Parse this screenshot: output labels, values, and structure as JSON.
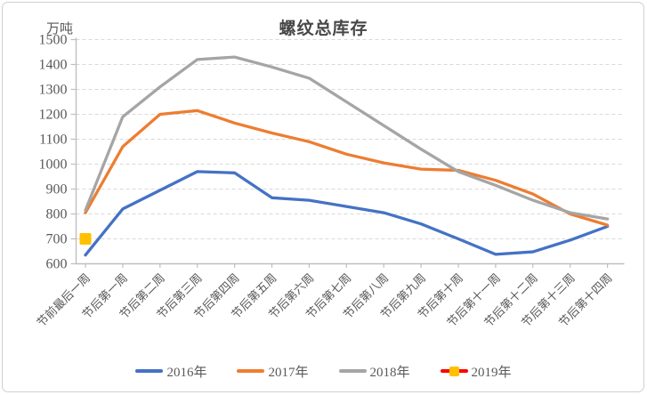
{
  "chart_data": {
    "type": "line",
    "title": "螺纹总库存",
    "unit": "万吨",
    "categories": [
      "节前最后一周",
      "节后第一周",
      "节后第二周",
      "节后第三周",
      "节后第四周",
      "节后第五周",
      "节后第六周",
      "节后第七周",
      "节后第八周",
      "节后第九周",
      "节后第十周",
      "节后第十一周",
      "节后第十二周",
      "节后第十三周",
      "节后第十四周"
    ],
    "series": [
      {
        "name": "2016年",
        "color": "#4472C4",
        "values": [
          635,
          820,
          895,
          970,
          965,
          865,
          855,
          830,
          805,
          760,
          700,
          638,
          648,
          695,
          750
        ]
      },
      {
        "name": "2017年",
        "color": "#ED7D31",
        "values": [
          805,
          1070,
          1200,
          1215,
          1165,
          1125,
          1090,
          1040,
          1005,
          980,
          975,
          935,
          880,
          800,
          755
        ]
      },
      {
        "name": "2018年",
        "color": "#A5A5A5",
        "values": [
          815,
          1190,
          1310,
          1420,
          1430,
          1390,
          1345,
          1250,
          1155,
          1060,
          970,
          915,
          855,
          805,
          780
        ]
      },
      {
        "name": "2019年",
        "color": "#FF0000",
        "marker": "square",
        "marker_color": "#FFC000",
        "values": [
          700,
          null,
          null,
          null,
          null,
          null,
          null,
          null,
          null,
          null,
          null,
          null,
          null,
          null,
          null
        ]
      }
    ],
    "ylim": [
      600,
      1500
    ],
    "ytick_step": 100,
    "grid": "horizontal-dashed",
    "legend_position": "bottom",
    "style_colors": {
      "gridline": "#D9D9D9",
      "axis": "#BFBFBF",
      "tick_text": "#595959",
      "title_text": "#474747"
    }
  }
}
